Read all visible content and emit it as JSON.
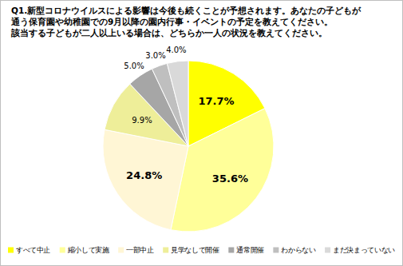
{
  "chart_data": {
    "type": "pie",
    "title": "Q1.新型コロナウイルスによる影響は今後も続くことが予想されます。あなたの子どもが\n通う保育園や幼稚園での9月以降の園内行事・イベントの予定を教えてください。\n該当する子どもが二人以上いる場合は、どちらか一人の状況を教えてください。",
    "categories": [
      "すべて中止",
      "縮小して実施",
      "一部中止",
      "見学なしで開催",
      "通常開催",
      "わからない",
      "まだ決まっていない"
    ],
    "values": [
      17.7,
      35.6,
      24.8,
      9.9,
      5.0,
      3.0,
      4.0
    ],
    "value_labels": [
      "17.7%",
      "35.6%",
      "24.8%",
      "9.9%",
      "5.0%",
      "3.0%",
      "4.0%"
    ],
    "colors": [
      "#ffff00",
      "#ffff99",
      "#fff6d5",
      "#eeee99",
      "#a6a6a6",
      "#bfbfbf",
      "#d9d9d9"
    ],
    "data_labels": true,
    "legend": "bottom"
  }
}
